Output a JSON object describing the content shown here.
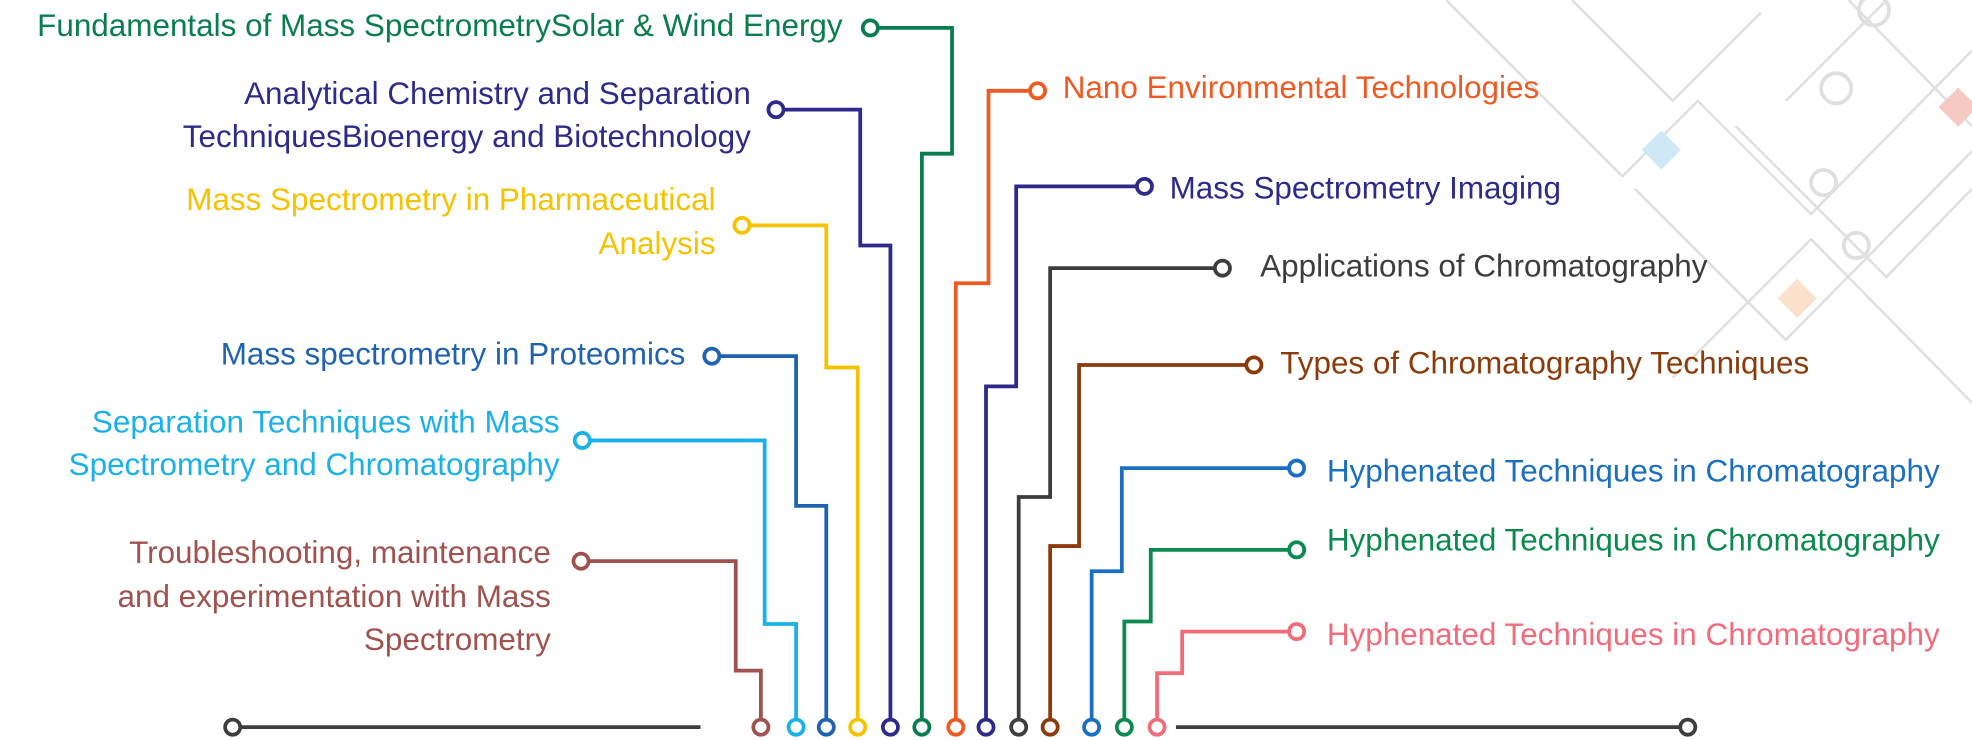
{
  "items": [
    {
      "lines": [
        "Fundamentals of Mass SpectrometrySolar & Wind Energy"
      ]
    },
    {
      "lines": [
        "Analytical Chemistry and Separation",
        "TechniquesBioenergy and Biotechnology"
      ]
    },
    {
      "lines": [
        "Mass Spectrometry in Pharmaceutical",
        "Analysis"
      ]
    },
    {
      "lines": [
        "Mass spectrometry in Proteomics"
      ]
    },
    {
      "lines": [
        "Separation Techniques with Mass",
        "Spectrometry and Chromatography"
      ]
    },
    {
      "lines": [
        "Troubleshooting, maintenance",
        "and experimentation with Mass",
        "Spectrometry"
      ]
    },
    {
      "lines": [
        "Nano Environmental Technologies"
      ]
    },
    {
      "lines": [
        "Mass Spectrometry Imaging"
      ]
    },
    {
      "lines": [
        "Applications of Chromatography"
      ]
    },
    {
      "lines": [
        "Types of Chromatography Techniques"
      ]
    },
    {
      "lines": [
        "Hyphenated Techniques in Chromatography"
      ]
    },
    {
      "lines": [
        "Hyphenated Techniques in Chromatography"
      ]
    },
    {
      "lines": [
        "Hyphenated Techniques in Chromatography"
      ]
    }
  ]
}
